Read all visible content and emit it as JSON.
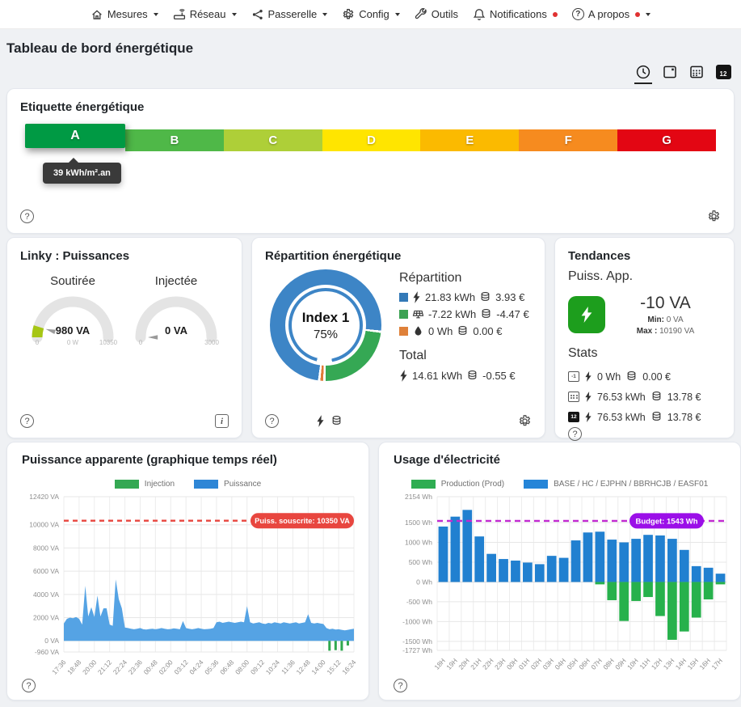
{
  "nav": {
    "items": [
      {
        "label": "Mesures",
        "icon": "home-icon",
        "caret": true,
        "dot": false
      },
      {
        "label": "Réseau",
        "icon": "router-icon",
        "caret": true,
        "dot": false
      },
      {
        "label": "Passerelle",
        "icon": "gateway-icon",
        "caret": true,
        "dot": false
      },
      {
        "label": "Config",
        "icon": "gear-icon",
        "caret": true,
        "dot": false
      },
      {
        "label": "Outils",
        "icon": "wrench-icon",
        "caret": false,
        "dot": false
      },
      {
        "label": "Notifications",
        "icon": "bell-icon",
        "caret": false,
        "dot": true
      },
      {
        "label": "A propos",
        "icon": "help-icon",
        "caret": true,
        "dot": true
      }
    ]
  },
  "page": {
    "title": "Tableau de bord énergétique"
  },
  "period_selector": {
    "items": [
      {
        "name": "realtime",
        "icon": "clock-icon",
        "active": true,
        "badge": ""
      },
      {
        "name": "day",
        "icon": "today-icon",
        "active": false,
        "badge": ""
      },
      {
        "name": "month",
        "icon": "calendar-month-icon",
        "active": false,
        "badge": ""
      },
      {
        "name": "custom-day",
        "icon": "calendar-12-icon",
        "active": false,
        "badge": "12"
      }
    ]
  },
  "energy_label": {
    "title": "Etiquette énergétique",
    "tooltip": "39 kWh/m².an",
    "classes": [
      {
        "letter": "A",
        "color": "#009a44",
        "active": true
      },
      {
        "letter": "B",
        "color": "#4fb848",
        "active": false
      },
      {
        "letter": "C",
        "color": "#aecf38",
        "active": false
      },
      {
        "letter": "D",
        "color": "#ffe500",
        "active": false
      },
      {
        "letter": "E",
        "color": "#fbba00",
        "active": false
      },
      {
        "letter": "F",
        "color": "#f68b1f",
        "active": false
      },
      {
        "letter": "G",
        "color": "#e30613",
        "active": false
      }
    ]
  },
  "linky": {
    "title": "Linky : Puissances",
    "gauges": [
      {
        "label": "Soutirée",
        "value": "980 VA",
        "sub_label": "0 W",
        "min": "0",
        "max": "10350",
        "fraction": 0.095,
        "track_color": "#e4e4e4",
        "value_color": "#a6c614",
        "needle_color": "#9a9a9a"
      },
      {
        "label": "Injectée",
        "value": "0 VA",
        "sub_label": "",
        "min": "0",
        "max": "3000",
        "fraction": 0,
        "track_color": "#e4e4e4",
        "value_color": "#a6c614",
        "needle_color": "#9a9a9a"
      }
    ]
  },
  "repartition": {
    "title": "Répartition énergétique",
    "center_label": "Index 1",
    "center_value": "75%",
    "section_title": "Répartition",
    "rows": [
      {
        "swatch": "#3379b7",
        "icon": "bolt-icon",
        "energy": "21.83 kWh",
        "cost": "3.93 €"
      },
      {
        "swatch": "#3ca253",
        "icon": "solar-panel-icon",
        "energy": "-7.22 kWh",
        "cost": "-4.47 €"
      },
      {
        "swatch": "#df813a",
        "icon": "water-drop-icon",
        "energy": "0 Wh",
        "cost": "0.00 €"
      }
    ],
    "total_title": "Total",
    "total_energy": "14.61 kWh",
    "total_cost": "-0.55 €",
    "donut": {
      "start_deg": 188,
      "gap_deg": 2.5,
      "segments": [
        {
          "color": "#3d85c6",
          "pct": 75
        },
        {
          "color": "#35a854",
          "pct": 23.5
        },
        {
          "color": "#e07b39",
          "pct": 1.5
        }
      ],
      "inner_ring_color": "#3d85c6",
      "inner_ring_from": 170,
      "inner_ring_gap_deg": 24
    }
  },
  "tendances": {
    "title": "Tendances",
    "subtitle": "Puiss. App.",
    "value": "-10 VA",
    "min_label": "Min:",
    "min_value": "0 VA",
    "max_label": "Max :",
    "max_value": "10190 VA",
    "stats_title": "Stats",
    "tile_color": "#1d9e1d",
    "rows": [
      {
        "icon": "yesterday-icon",
        "badge": "-1",
        "energy": "0 Wh",
        "cost": "0.00 €"
      },
      {
        "icon": "calendar-month-icon",
        "badge": "",
        "energy": "76.53 kWh",
        "cost": "13.78 €"
      },
      {
        "icon": "calendar-12-icon",
        "badge": "12",
        "energy": "76.53 kWh",
        "cost": "13.78 €"
      }
    ]
  },
  "chart_data": [
    {
      "type": "area",
      "title": "Puissance apparente (graphique temps réel)",
      "legend": [
        {
          "label": "Injection",
          "color": "#34a853"
        },
        {
          "label": "Puissance",
          "color": "#2e86d6"
        }
      ],
      "ylim": [
        -960,
        12420
      ],
      "grid": true,
      "legend_position": "top",
      "y_ticks": [
        {
          "v": 12420,
          "label": "12420 VA"
        },
        {
          "v": 10000,
          "label": "10000 VA"
        },
        {
          "v": 8000,
          "label": "8000 VA"
        },
        {
          "v": 6000,
          "label": "6000 VA"
        },
        {
          "v": 4000,
          "label": "4000 VA"
        },
        {
          "v": 2000,
          "label": "2000 VA"
        },
        {
          "v": 0,
          "label": "0 VA"
        },
        {
          "v": -960,
          "label": "-960 VA"
        }
      ],
      "x_tick_labels": [
        "17:36",
        "18:48",
        "20:00",
        "21:12",
        "22:24",
        "23:36",
        "00:48",
        "02:00",
        "03:12",
        "04:24",
        "05:36",
        "06:48",
        "08:00",
        "09:12",
        "10:24",
        "11:36",
        "12:48",
        "14:00",
        "15:12",
        "16:24"
      ],
      "annotation": {
        "label": "Puiss. souscrite: 10350 VA",
        "value": 10350,
        "color": "#e8463f"
      },
      "series": [
        {
          "name": "Puissance",
          "color": "#55a3e4",
          "values": [
            1500,
            1900,
            2000,
            1950,
            2050,
            1900,
            1400,
            4750,
            2100,
            2900,
            2050,
            3900,
            2100,
            2800,
            2800,
            1400,
            1300,
            5300,
            3600,
            2800,
            1150,
            1100,
            1050,
            1000,
            1050,
            1100,
            1000,
            980,
            1020,
            1050,
            1000,
            1050,
            1100,
            1050,
            1000,
            1020,
            1080,
            1050,
            1000,
            1700,
            1100,
            1050,
            1000,
            1050,
            1100,
            1050,
            1000,
            1020,
            1050,
            1100,
            1600,
            1650,
            1550,
            1600,
            1650,
            1600,
            1550,
            1600,
            1650,
            1600,
            3000,
            1600,
            1500,
            1550,
            1600,
            1500,
            1450,
            1550,
            1500,
            1600,
            1550,
            1500,
            1600,
            1550,
            1500,
            1550,
            1600,
            1500,
            1550,
            1600,
            2300,
            1550,
            1500,
            1550,
            1500,
            1450,
            1100,
            1000,
            1050,
            980,
            1000,
            950,
            900,
            950,
            1000,
            1050
          ]
        },
        {
          "name": "Injection",
          "color": "#2fa84f",
          "values": [
            0,
            0,
            0,
            0,
            0,
            0,
            0,
            0,
            0,
            0,
            0,
            0,
            0,
            0,
            0,
            0,
            0,
            0,
            0,
            0,
            0,
            0,
            0,
            0,
            0,
            0,
            0,
            0,
            0,
            0,
            0,
            0,
            0,
            0,
            0,
            0,
            0,
            0,
            0,
            0,
            0,
            0,
            0,
            0,
            0,
            0,
            0,
            0,
            0,
            0,
            0,
            0,
            0,
            0,
            0,
            0,
            0,
            0,
            0,
            0,
            0,
            0,
            0,
            0,
            0,
            0,
            0,
            0,
            0,
            0,
            0,
            0,
            0,
            0,
            0,
            0,
            0,
            0,
            0,
            0,
            0,
            0,
            0,
            0,
            0,
            0,
            0,
            -850,
            0,
            -800,
            0,
            -850,
            0,
            -400,
            0,
            0
          ]
        }
      ]
    },
    {
      "type": "bar",
      "title": "Usage d'électricité",
      "legend": [
        {
          "label": "Production (Prod)",
          "color": "#2fad52"
        },
        {
          "label": "BASE / HC / EJPHN / BBRHCJB / EASF01",
          "color": "#2585d8"
        }
      ],
      "ylim": [
        -1727,
        2154
      ],
      "grid": true,
      "legend_position": "top",
      "y_ticks": [
        {
          "v": 2154,
          "label": "2154 Wh"
        },
        {
          "v": 1500,
          "label": "1500 Wh"
        },
        {
          "v": 1000,
          "label": "1000 Wh"
        },
        {
          "v": 500,
          "label": "500 Wh"
        },
        {
          "v": 0,
          "label": "0 Wh"
        },
        {
          "v": -500,
          "label": "-500 Wh"
        },
        {
          "v": -1000,
          "label": "-1000 Wh"
        },
        {
          "v": -1500,
          "label": "-1500 Wh"
        },
        {
          "v": -1727,
          "label": "-1727 Wh"
        }
      ],
      "categories": [
        "18H",
        "19H",
        "20H",
        "21H",
        "22H",
        "23H",
        "00H",
        "01H",
        "02H",
        "03H",
        "04H",
        "05H",
        "06H",
        "07H",
        "08H",
        "09H",
        "10H",
        "11H",
        "12H",
        "13H",
        "14H",
        "15H",
        "16H",
        "17H"
      ],
      "annotation": {
        "label": "Budget: 1543 Wh",
        "value": 1543,
        "pill_color": "#9b0fe8",
        "line_color": "#c22ad1"
      },
      "series": [
        {
          "name": "BASE / HC / EJPHN / BBRHCJB / EASF01",
          "color": "#2180d0",
          "values": [
            1400,
            1650,
            1820,
            1150,
            710,
            580,
            540,
            490,
            450,
            660,
            610,
            1050,
            1250,
            1270,
            1070,
            1000,
            1090,
            1190,
            1175,
            1090,
            810,
            400,
            360,
            210
          ]
        },
        {
          "name": "Production (Prod)",
          "color": "#27b14c",
          "values": [
            0,
            0,
            0,
            0,
            0,
            0,
            0,
            0,
            0,
            0,
            0,
            0,
            0,
            -60,
            -460,
            -985,
            -480,
            -380,
            -860,
            -1460,
            -1250,
            -900,
            -440,
            -60
          ]
        }
      ]
    }
  ]
}
